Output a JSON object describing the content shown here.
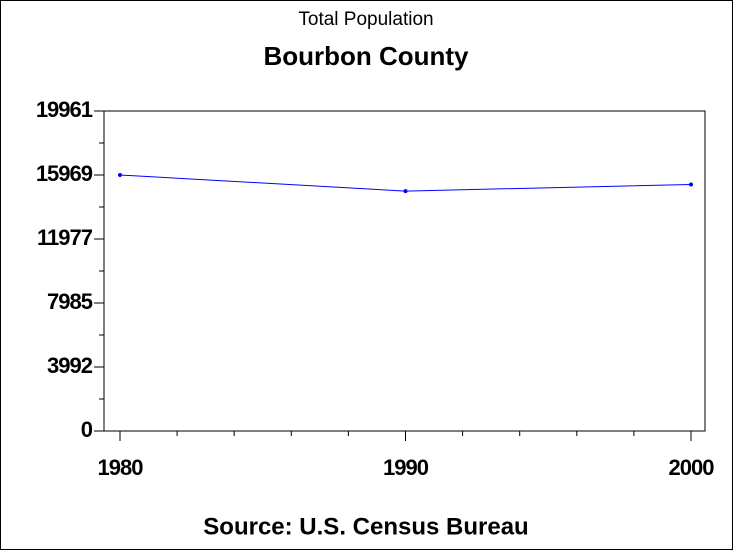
{
  "chart_data": {
    "type": "line",
    "title": "Total Population",
    "subtitle": "Bourbon County",
    "source": "Source: U.S. Census Bureau",
    "x": [
      1980,
      1990,
      2000
    ],
    "series": [
      {
        "name": "Total Population",
        "color": "#0000ff",
        "values": [
          15969,
          14966,
          15379
        ]
      }
    ],
    "xlim": [
      1979.44,
      2000.49
    ],
    "xticks": [
      1980,
      1990,
      2000
    ],
    "xminorticks": [
      1982,
      1984,
      1986,
      1988,
      1992,
      1994,
      1996,
      1998
    ],
    "ylim": [
      0,
      19961
    ],
    "yticks": [
      0,
      3992,
      7985,
      11977,
      15969,
      19961
    ],
    "yminorticks": [
      1996,
      5988.5,
      9981,
      13973,
      17965
    ],
    "grid": false
  }
}
